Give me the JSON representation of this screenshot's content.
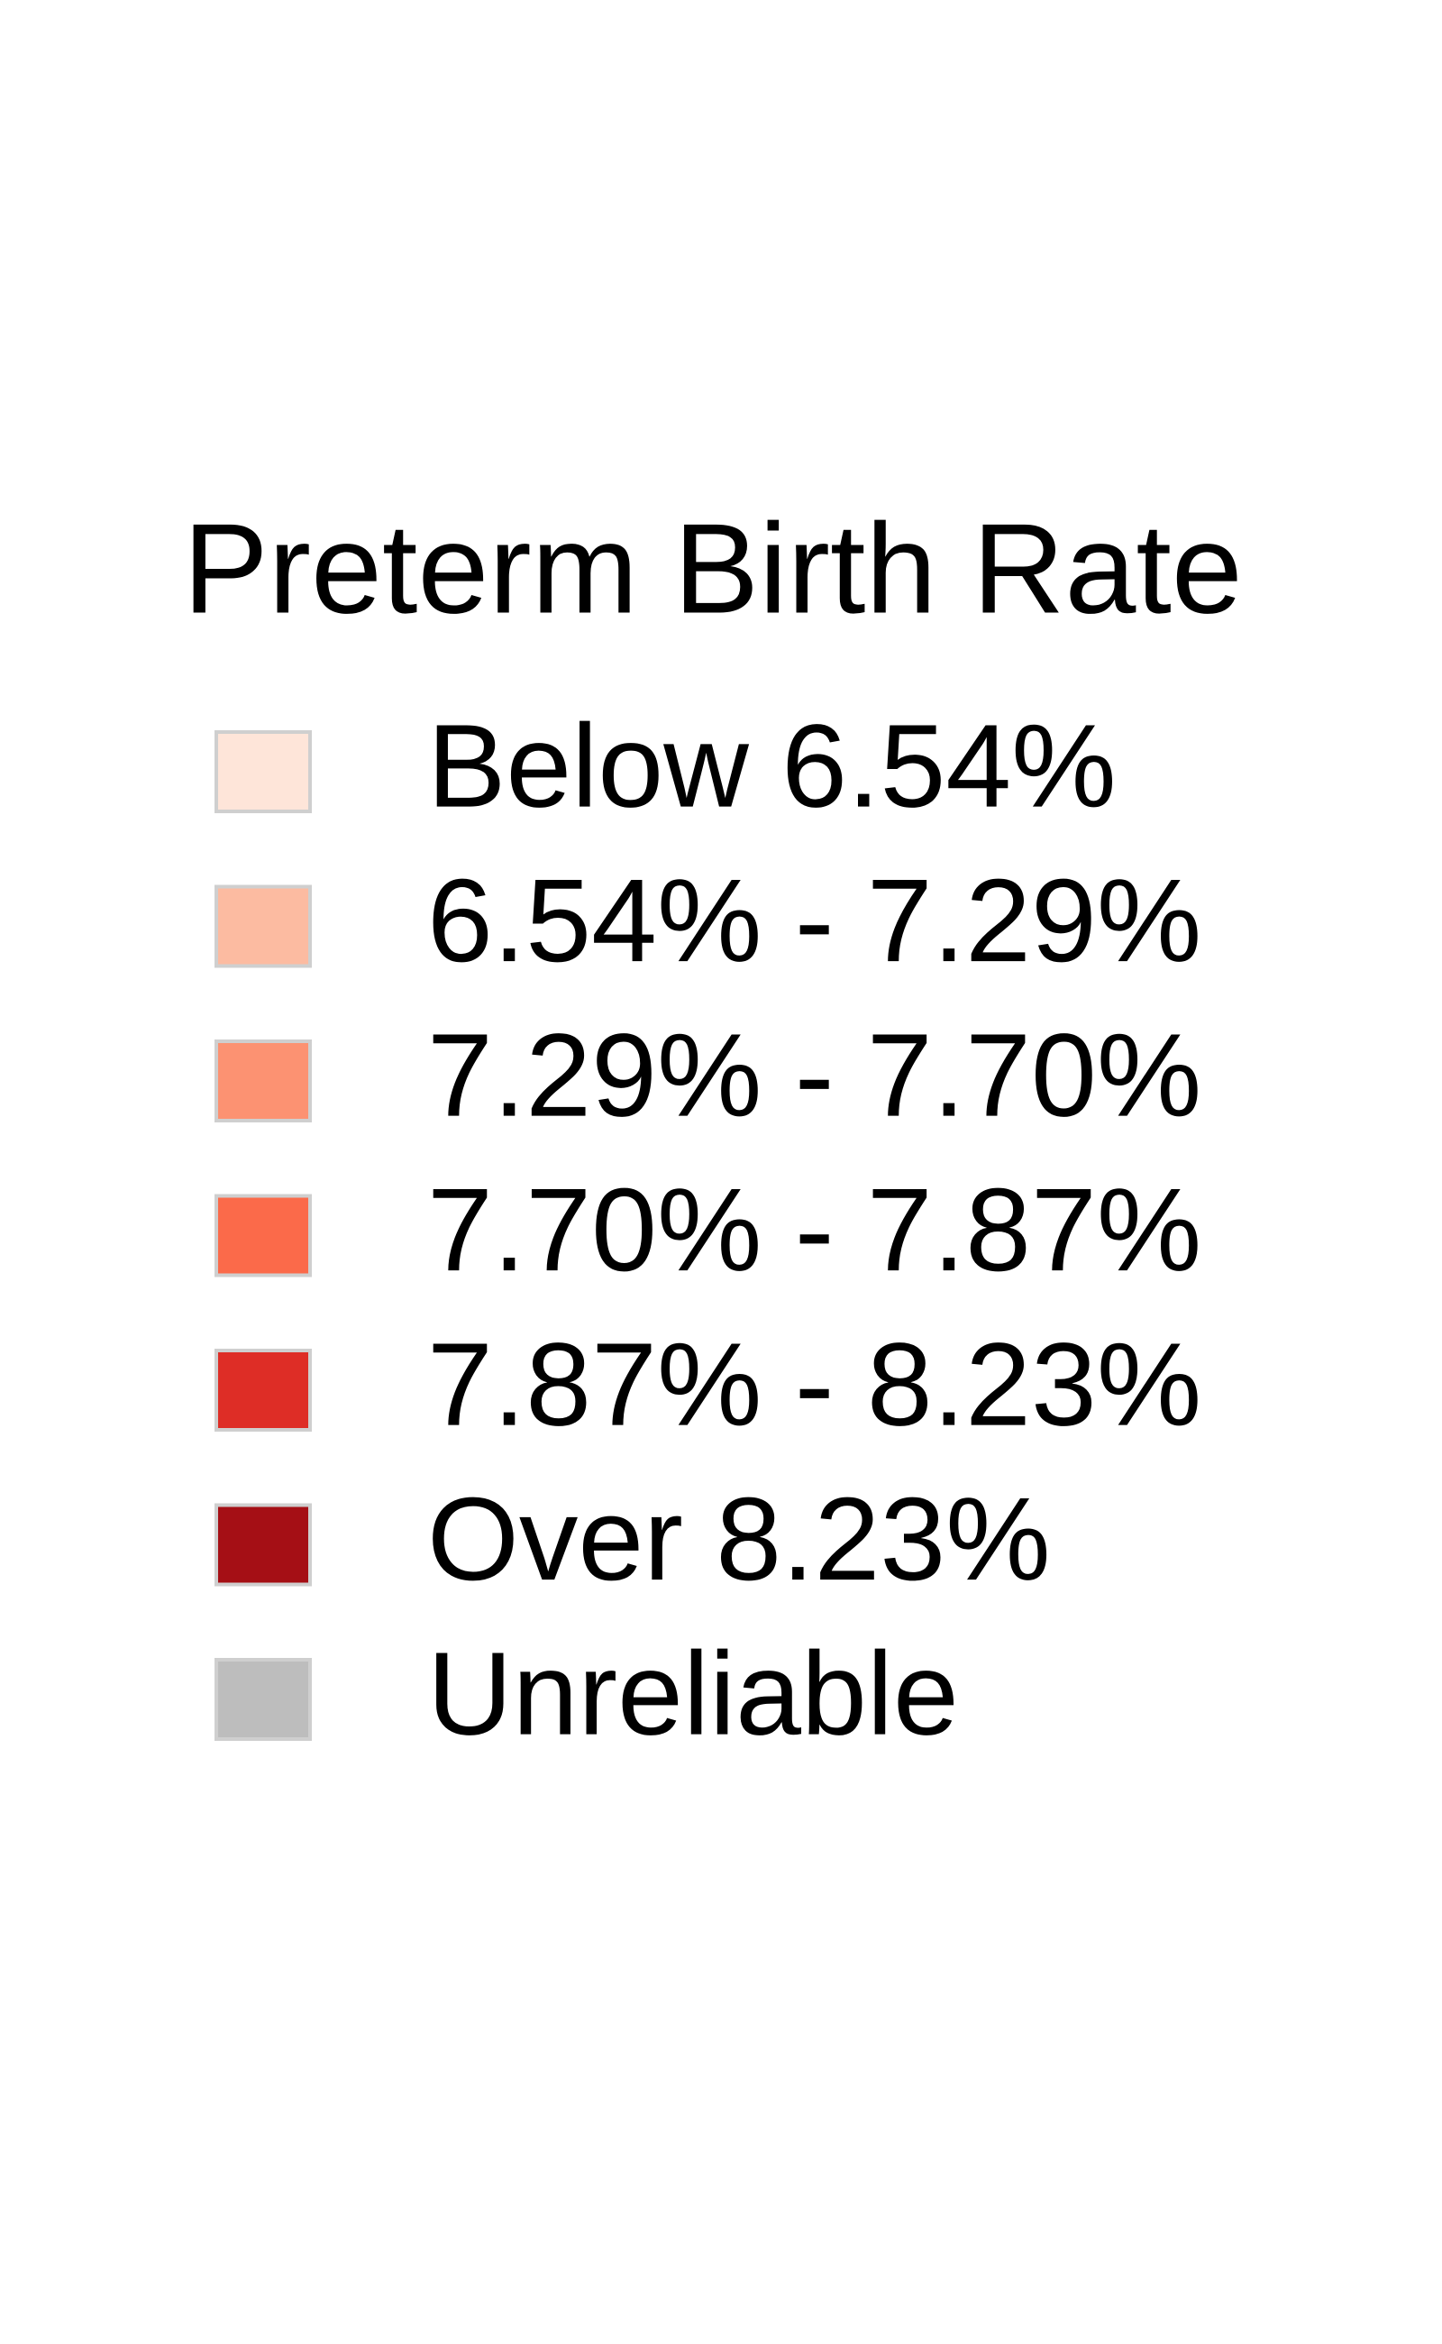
{
  "legend": {
    "title": "Preterm Birth Rate",
    "items": [
      {
        "label": "Below 6.54%",
        "color": "#fee5d9"
      },
      {
        "label": "6.54% - 7.29%",
        "color": "#fcbba1"
      },
      {
        "label": "7.29% - 7.70%",
        "color": "#fc9272"
      },
      {
        "label": "7.70% - 7.87%",
        "color": "#fb6a4a"
      },
      {
        "label": "7.87% - 8.23%",
        "color": "#de2d26"
      },
      {
        "label": "Over 8.23%",
        "color": "#a50f15"
      },
      {
        "label": "Unreliable",
        "color": "#bdbdbd"
      }
    ]
  }
}
